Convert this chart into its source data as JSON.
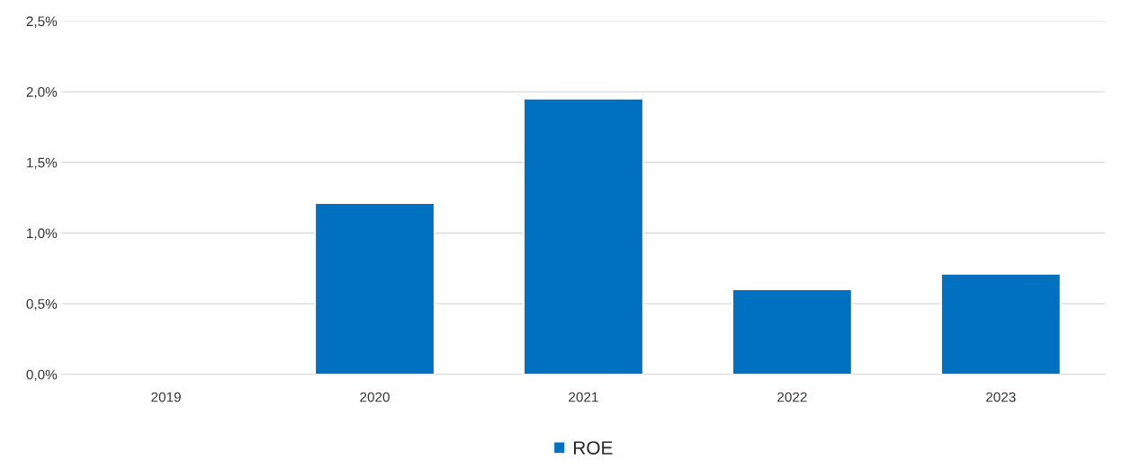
{
  "chart_data": {
    "type": "bar",
    "categories": [
      "2019",
      "2020",
      "2021",
      "2022",
      "2023"
    ],
    "series": [
      {
        "name": "ROE",
        "color": "#0070c0",
        "values": [
          null,
          1.21,
          1.95,
          0.6,
          0.71
        ]
      }
    ],
    "ylim": [
      0,
      2.5
    ],
    "yticks": [
      {
        "value": 0,
        "label": "0,0%"
      },
      {
        "value": 0.5,
        "label": "0,5%"
      },
      {
        "value": 1.0,
        "label": "1,0%"
      },
      {
        "value": 1.5,
        "label": "1,5%"
      },
      {
        "value": 2.0,
        "label": "2,0%"
      },
      {
        "value": 2.5,
        "label": "2,5%"
      }
    ],
    "grid": "y",
    "legend": "bottom"
  }
}
